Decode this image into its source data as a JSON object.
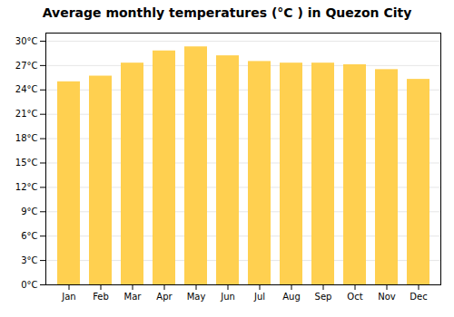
{
  "chart_data": {
    "type": "bar",
    "title": "Average monthly temperatures (°C ) in Quezon City",
    "categories": [
      "Jan",
      "Feb",
      "Mar",
      "Apr",
      "May",
      "Jun",
      "Jul",
      "Aug",
      "Sep",
      "Oct",
      "Nov",
      "Dec"
    ],
    "values": [
      25.0,
      25.7,
      27.3,
      28.8,
      29.3,
      28.2,
      27.5,
      27.3,
      27.3,
      27.1,
      26.5,
      25.3
    ],
    "color": "#FFD050",
    "ylim": [
      0,
      31
    ],
    "yticks": [
      {
        "value": 0,
        "label": "0°C"
      },
      {
        "value": 3,
        "label": "3°C"
      },
      {
        "value": 6,
        "label": "6°C"
      },
      {
        "value": 9,
        "label": "9°C"
      },
      {
        "value": 12,
        "label": "12°C"
      },
      {
        "value": 15,
        "label": "15°C"
      },
      {
        "value": 18,
        "label": "18°C"
      },
      {
        "value": 21,
        "label": "21°C"
      },
      {
        "value": 24,
        "label": "24°C"
      },
      {
        "value": 27,
        "label": "27°C"
      },
      {
        "value": 30,
        "label": "30°C"
      }
    ],
    "grid": true
  }
}
